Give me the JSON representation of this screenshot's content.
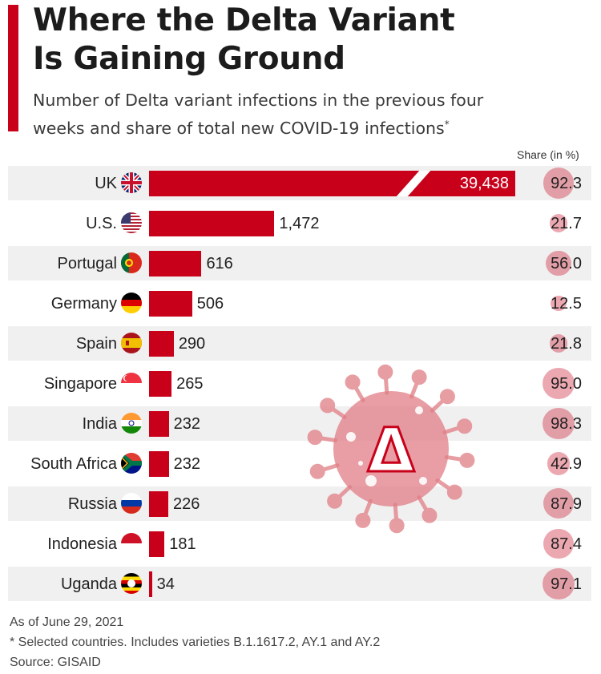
{
  "title_lines": [
    "Where the Delta Variant",
    "Is Gaining Ground"
  ],
  "subtitle_lines": [
    "Number of Delta variant infections in the previous four",
    "weeks and share of total new COVID-19 infections"
  ],
  "subtitle_mark": "*",
  "share_header": "Share (in %)",
  "colors": {
    "accent": "#c8001a",
    "bar": "#c8001a",
    "row_shade": "#f0f0f0"
  },
  "chart_data": {
    "type": "bar",
    "orientation": "horizontal",
    "axis_break_on_first_bar": true,
    "categories": [
      "UK",
      "U.S.",
      "Portugal",
      "Germany",
      "Spain",
      "Singapore",
      "India",
      "South Africa",
      "Russia",
      "Indonesia",
      "Uganda"
    ],
    "values": [
      39438,
      1472,
      616,
      506,
      290,
      265,
      232,
      232,
      226,
      181,
      34
    ],
    "value_labels": [
      "39,438",
      "1,472",
      "616",
      "506",
      "290",
      "265",
      "232",
      "232",
      "226",
      "181",
      "34"
    ],
    "share_values": [
      92.3,
      21.7,
      56.0,
      12.5,
      21.8,
      95.0,
      98.3,
      42.9,
      87.9,
      87.4,
      97.1
    ],
    "share_labels": [
      "92.3",
      "21.7",
      "56.0",
      "12.5",
      "21.8",
      "95.0",
      "98.3",
      "42.9",
      "87.9",
      "87.4",
      "97.1"
    ],
    "flag_icons": [
      "uk-flag-icon",
      "us-flag-icon",
      "portugal-flag-icon",
      "germany-flag-icon",
      "spain-flag-icon",
      "singapore-flag-icon",
      "india-flag-icon",
      "south-africa-flag-icon",
      "russia-flag-icon",
      "indonesia-flag-icon",
      "uganda-flag-icon"
    ],
    "xlim": [
      0,
      1600
    ]
  },
  "decoration": {
    "icon": "delta-virus-icon",
    "symbol": "Δ"
  },
  "footnotes": [
    "As of June 29, 2021",
    "* Selected countries. Includes varieties B.1.1617.2, AY.1 and AY.2",
    "Source: GISAID"
  ]
}
